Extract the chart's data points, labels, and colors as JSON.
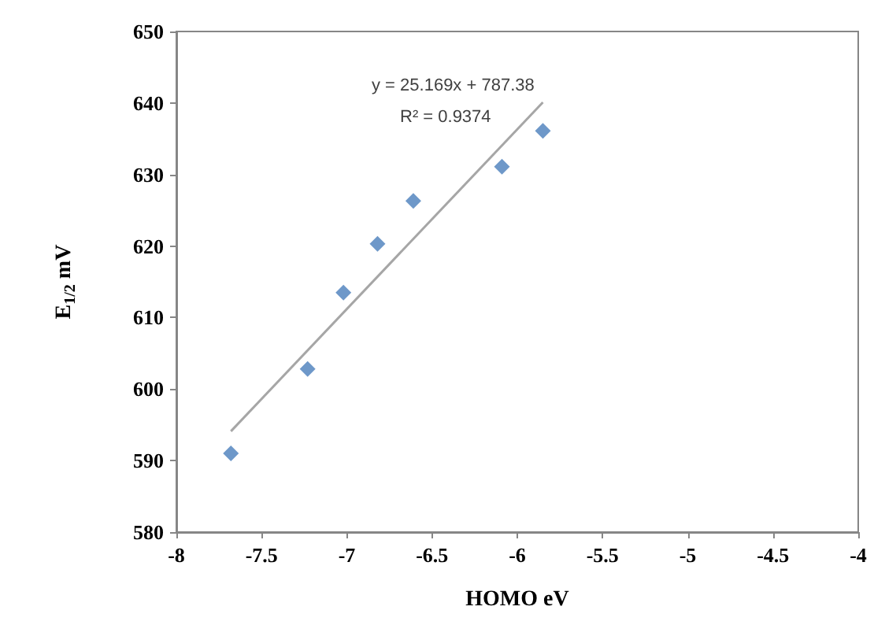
{
  "chart_data": {
    "type": "scatter",
    "xlabel": "HOMO eV",
    "ylabel": "E$_{1/2}$ mV",
    "series": [
      {
        "color": "#4a7ebb",
        "marker": "diamond",
        "x": [
          -7.68,
          -7.23,
          -7.02,
          -6.82,
          -6.61,
          -6.09,
          -5.85
        ],
        "values": [
          591,
          602.8,
          613.5,
          620.3,
          626.3,
          631.1,
          636.1
        ]
      },
      {
        "type": "line",
        "color": "#a6a6a6",
        "marker": "none",
        "line_style": "solid",
        "x": [
          -7.68,
          -5.85
        ],
        "values": [
          594.1,
          640.1
        ]
      }
    ],
    "annotations": [
      "y = 25.169x + 787.38",
      "R² = 0.9374"
    ],
    "xlim": [
      -8,
      -4
    ],
    "xticks": [
      -8,
      -7.5,
      -7,
      -6.5,
      -6,
      -5.5,
      -5,
      -4.5,
      -4
    ],
    "ylim": [
      580,
      650
    ],
    "yticks": [
      580,
      590,
      600,
      610,
      620,
      630,
      640,
      650
    ],
    "grid": false
  }
}
